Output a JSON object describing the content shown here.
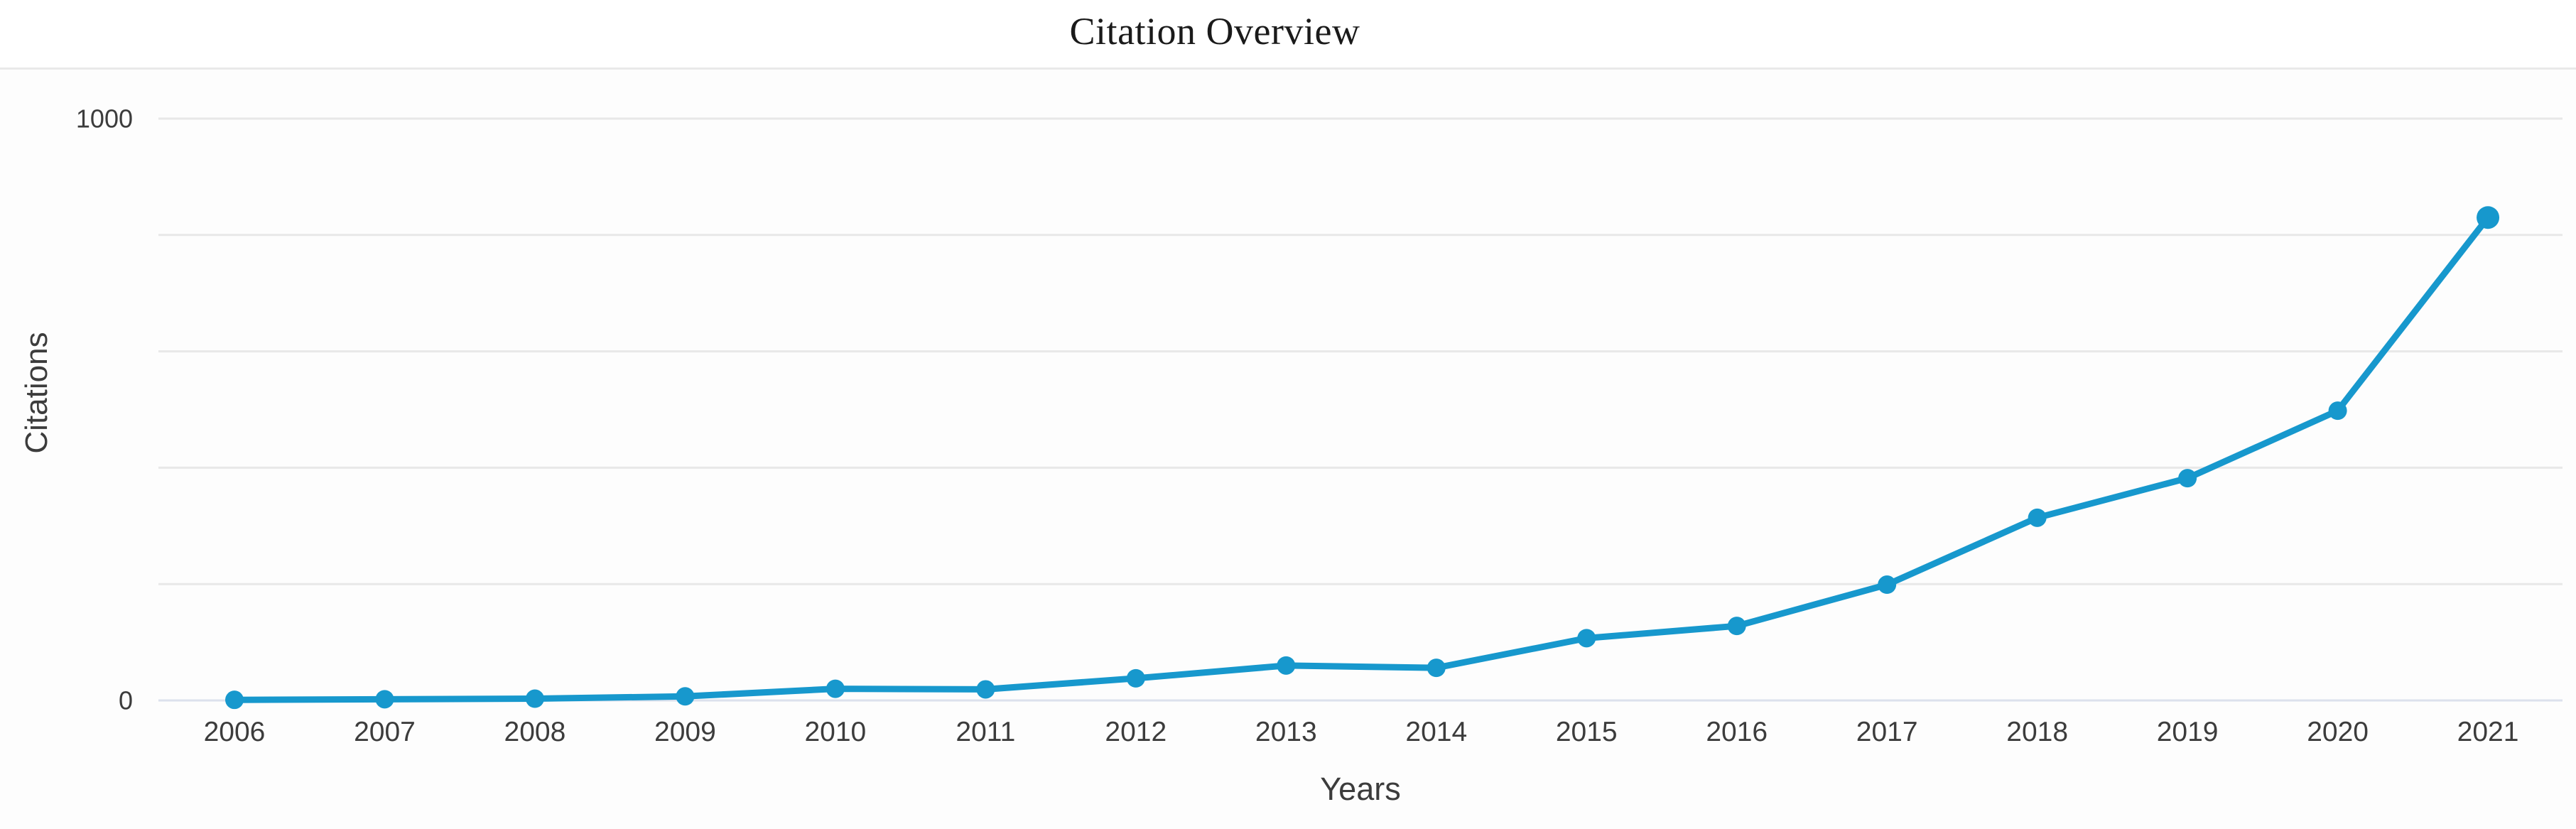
{
  "chart_data": {
    "type": "line",
    "title": "Citation Overview",
    "xlabel": "Years",
    "ylabel": "Citations",
    "x": [
      "2006",
      "2007",
      "2008",
      "2009",
      "2010",
      "2011",
      "2012",
      "2013",
      "2014",
      "2015",
      "2016",
      "2017",
      "2018",
      "2019",
      "2020",
      "2021"
    ],
    "series": [
      {
        "name": "Citations",
        "values": [
          1,
          2,
          3,
          7,
          20,
          19,
          38,
          60,
          56,
          107,
          128,
          199,
          314,
          382,
          498,
          830
        ]
      }
    ],
    "ylim": [
      0,
      1000
    ],
    "yticks": [
      0,
      1000
    ],
    "ytick_labels": [
      "0",
      "1000"
    ],
    "gridline_values": [
      0,
      200,
      400,
      600,
      800,
      1000
    ],
    "grid": "horizontal",
    "legend": "none",
    "colors": {
      "line": "#1798cd",
      "grid": "#e8e8e8",
      "zero_line": "#dce1ed",
      "axis_text": "#3c3c3c",
      "title_text": "#1a1a1a",
      "divider": "#e9e9e9"
    }
  }
}
